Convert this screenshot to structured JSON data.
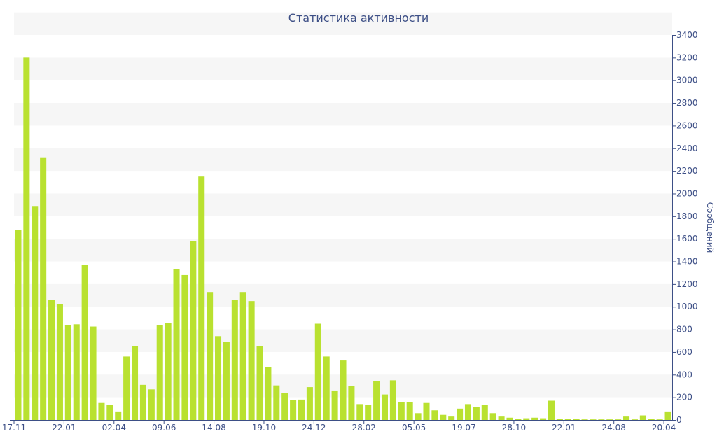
{
  "chart_data": {
    "type": "bar",
    "title": "Статистика активности",
    "ylabel": "Сообщений",
    "xlabel": "",
    "ylim": [
      0,
      3400
    ],
    "ytick_step": 200,
    "y_axis_side": "right",
    "grid": "alternating-bands",
    "bar_color": "#b9e130",
    "text_color": "#3d4f86",
    "x_tick_labels": [
      {
        "label": "17.11",
        "index": 0
      },
      {
        "label": "22.01",
        "index": 6
      },
      {
        "label": "02.04",
        "index": 12
      },
      {
        "label": "09.06",
        "index": 18
      },
      {
        "label": "14.08",
        "index": 24
      },
      {
        "label": "19.10",
        "index": 30
      },
      {
        "label": "24.12",
        "index": 36
      },
      {
        "label": "28.02",
        "index": 42
      },
      {
        "label": "05.05",
        "index": 48
      },
      {
        "label": "19.07",
        "index": 54
      },
      {
        "label": "28.10",
        "index": 60
      },
      {
        "label": "22.01",
        "index": 66
      },
      {
        "label": "24.08",
        "index": 72
      },
      {
        "label": "20.04",
        "index": 78
      }
    ],
    "values": [
      1680,
      3200,
      1890,
      2320,
      1060,
      1020,
      840,
      845,
      1370,
      825,
      150,
      135,
      75,
      560,
      655,
      310,
      270,
      840,
      855,
      1335,
      1280,
      1580,
      2150,
      1130,
      740,
      690,
      1060,
      1130,
      1050,
      655,
      465,
      305,
      240,
      175,
      180,
      290,
      850,
      560,
      260,
      525,
      300,
      140,
      130,
      345,
      225,
      350,
      160,
      155,
      60,
      150,
      85,
      45,
      30,
      100,
      140,
      115,
      135,
      60,
      30,
      20,
      10,
      15,
      20,
      15,
      170,
      10,
      10,
      12,
      5,
      5,
      5,
      5,
      5,
      30,
      5,
      40,
      10,
      5,
      75
    ]
  }
}
